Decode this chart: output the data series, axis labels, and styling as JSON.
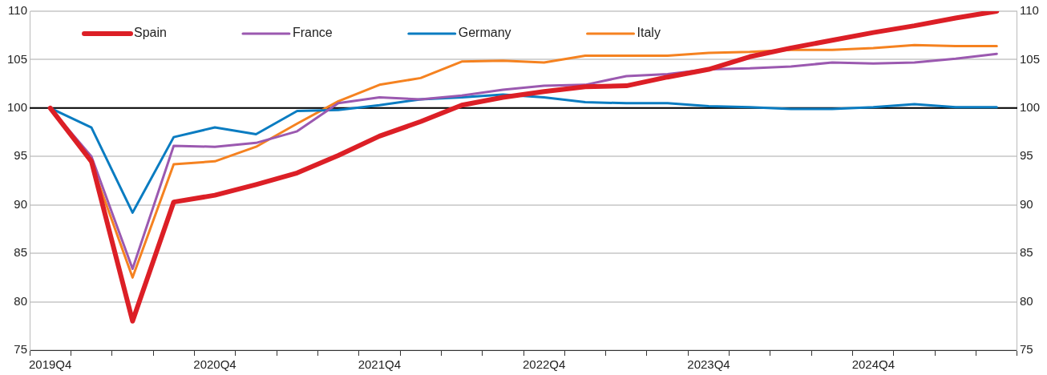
{
  "chart_data": {
    "type": "line",
    "categories": [
      "2019Q4",
      null,
      null,
      null,
      "2020Q4",
      null,
      null,
      null,
      "2021Q4",
      null,
      null,
      null,
      "2022Q4",
      null,
      null,
      null,
      "2023Q4",
      null,
      null,
      null,
      "2024Q4",
      null,
      null,
      null
    ],
    "series": [
      {
        "name": "Spain",
        "color": "#dc1f26",
        "values": [
          100,
          94.5,
          78,
          90.3,
          91,
          92.1,
          93.3,
          95.1,
          97.1,
          98.6,
          100.3,
          101.1,
          101.7,
          102.2,
          102.3,
          103.2,
          104,
          105.3,
          106.2,
          107,
          107.8,
          108.5,
          109.3,
          110
        ]
      },
      {
        "name": "France",
        "color": "#9b59b0",
        "values": [
          100,
          95,
          83.4,
          96.1,
          96,
          96.4,
          97.6,
          100.5,
          101.1,
          100.9,
          101.3,
          101.9,
          102.3,
          102.4,
          103.3,
          103.5,
          104,
          104.1,
          104.3,
          104.7,
          104.6,
          104.7,
          105.1,
          105.6
        ]
      },
      {
        "name": "Germany",
        "color": "#0a7cc1",
        "values": [
          100,
          98,
          89.2,
          97,
          98,
          97.3,
          99.7,
          99.8,
          100.3,
          100.9,
          101.1,
          101.4,
          101.1,
          100.6,
          100.5,
          100.5,
          100.2,
          100.1,
          99.9,
          99.9,
          100.1,
          100.4,
          100.1,
          100.1
        ]
      },
      {
        "name": "Italy",
        "color": "#f58220",
        "values": [
          100,
          94.3,
          82.5,
          94.2,
          94.5,
          96,
          98.4,
          100.7,
          102.4,
          103.1,
          104.8,
          104.9,
          104.7,
          105.4,
          105.4,
          105.4,
          105.7,
          105.8,
          106,
          106,
          106.2,
          106.5,
          106.4,
          106.4
        ]
      }
    ],
    "ylim": [
      75,
      110
    ],
    "yticks": [
      75,
      80,
      85,
      90,
      95,
      100,
      105,
      110
    ],
    "y2lim": [
      75,
      110
    ],
    "y2ticks": [
      75,
      80,
      85,
      90,
      95,
      100,
      105,
      110
    ],
    "ref_lines": [
      {
        "axis": "y",
        "value": 100,
        "color": "#000000"
      }
    ],
    "grid": "y",
    "legend": "top left",
    "marker": "none",
    "line_style": "solid"
  }
}
